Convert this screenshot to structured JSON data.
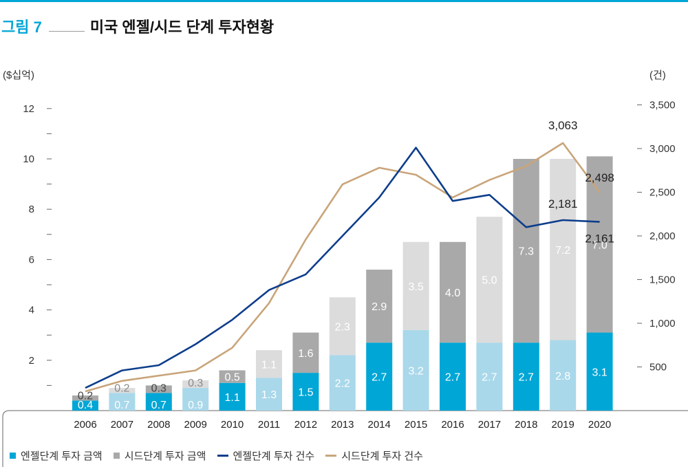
{
  "figure": {
    "label": "그림 7",
    "title": "미국 엔젤/시드 단계 투자현황"
  },
  "colors": {
    "accent": "#00a6d6",
    "angel_bar_dark": "#00a6d6",
    "angel_bar_light": "#a9d8ea",
    "seed_bar_dark": "#a9a9a9",
    "seed_bar_light": "#dcdcdc",
    "angel_line": "#0d3d8c",
    "seed_line": "#c9a57a"
  },
  "chart_data": {
    "type": "bar",
    "categories": [
      "2006",
      "2007",
      "2008",
      "2009",
      "2010",
      "2011",
      "2012",
      "2013",
      "2014",
      "2015",
      "2016",
      "2017",
      "2018",
      "2019",
      "2020"
    ],
    "ylabel": "($십억)",
    "y2label": "(건)",
    "yticks": [
      "2",
      "4",
      "6",
      "8",
      "10",
      "12"
    ],
    "y2ticks": [
      "500",
      "1,000",
      "1,500",
      "2,000",
      "2,500",
      "3,000",
      "3,500"
    ],
    "ylim": [
      0,
      12.5
    ],
    "y2lim": [
      0,
      3600
    ],
    "grid": false,
    "legend_position": "bottom",
    "series": [
      {
        "name": "엔젤단계 투자 금액",
        "kind": "bar",
        "stack": "bottom",
        "values": [
          0.4,
          0.7,
          0.7,
          0.9,
          1.1,
          1.3,
          1.5,
          2.2,
          2.7,
          3.2,
          2.7,
          2.7,
          2.7,
          2.8,
          3.1
        ],
        "labels": [
          "0.4",
          "0.7",
          "0.7",
          "0.9",
          "1.1",
          "1.3",
          "1.5",
          "2.2",
          "2.7",
          "3.2",
          "2.7",
          "2.7",
          "2.7",
          "2.8",
          "3.1"
        ]
      },
      {
        "name": "시드단계 투자 금액",
        "kind": "bar",
        "stack": "top",
        "values": [
          0.2,
          0.2,
          0.3,
          0.3,
          0.5,
          1.1,
          1.6,
          2.3,
          2.9,
          3.5,
          4.0,
          5.0,
          7.3,
          7.2,
          7.0
        ],
        "labels": [
          "0.2",
          "0.2",
          "0.3",
          "0.3",
          "0.5",
          "1.1",
          "1.6",
          "2.3",
          "2.9",
          "3.5",
          "4.0",
          "5.0",
          "7.3",
          "7.2",
          "7.0"
        ]
      },
      {
        "name": "엔젤단계 투자 건수",
        "kind": "line",
        "axis": "y2",
        "values": [
          260,
          460,
          520,
          760,
          1040,
          1380,
          1560,
          2000,
          2440,
          3010,
          2400,
          2470,
          2100,
          2181,
          2161
        ]
      },
      {
        "name": "시드단계 투자 건수",
        "kind": "line",
        "axis": "y2",
        "values": [
          220,
          340,
          400,
          460,
          720,
          1230,
          1960,
          2590,
          2780,
          2700,
          2440,
          2640,
          2800,
          3063,
          2498
        ]
      }
    ],
    "annotations": [
      {
        "series": 3,
        "index": 13,
        "text": "3,063",
        "place": "above"
      },
      {
        "series": 3,
        "index": 14,
        "text": "2,498",
        "place": "above"
      },
      {
        "series": 2,
        "index": 13,
        "text": "2,181",
        "place": "above"
      },
      {
        "series": 2,
        "index": 14,
        "text": "2,161",
        "place": "below"
      }
    ]
  },
  "legend": {
    "items": [
      {
        "label": "엔젤단계 투자 금액",
        "marker": "square",
        "color": "#00a6d6"
      },
      {
        "label": "시드단계 투자 금액",
        "marker": "square",
        "color": "#a9a9a9"
      },
      {
        "label": "엔젤단계 투자 건수",
        "marker": "line",
        "color": "#0d3d8c"
      },
      {
        "label": "시드단계 투자 건수",
        "marker": "line",
        "color": "#c9a57a"
      }
    ]
  }
}
